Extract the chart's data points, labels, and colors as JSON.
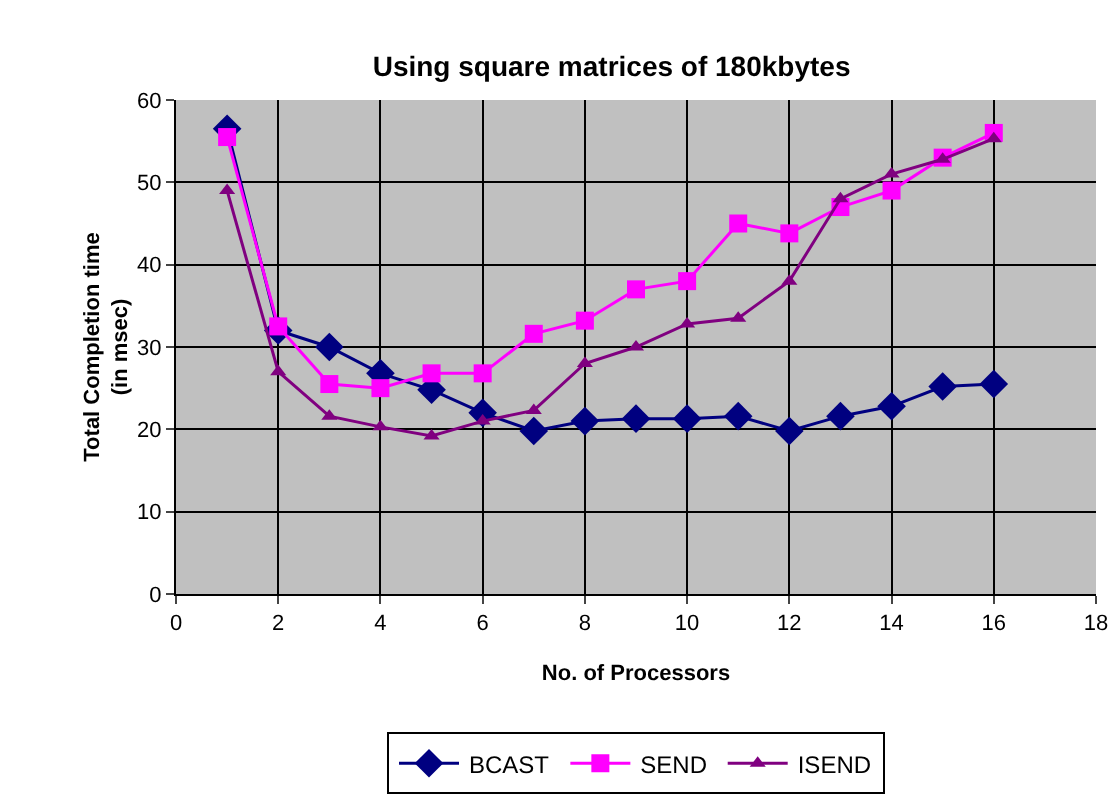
{
  "chart_data": {
    "type": "line",
    "title": "Using square matrices of 180kbytes",
    "xlabel": "No. of Processors",
    "ylabel": "Total Completion time\n(in msec)",
    "x": [
      1,
      2,
      3,
      4,
      5,
      6,
      7,
      8,
      9,
      10,
      11,
      12,
      13,
      14,
      15,
      16
    ],
    "series": [
      {
        "name": "BCAST",
        "color": "#000080",
        "marker": "diamond",
        "values": [
          56.5,
          32,
          30,
          26.8,
          24.8,
          22,
          19.8,
          21,
          21.3,
          21.3,
          21.6,
          19.8,
          21.6,
          22.8,
          25.2,
          25.5
        ]
      },
      {
        "name": "SEND",
        "color": "#ff00ff",
        "marker": "square",
        "values": [
          55.5,
          32.5,
          25.5,
          25,
          26.8,
          26.8,
          31.6,
          33.2,
          37,
          38,
          45,
          43.8,
          47,
          49,
          53,
          56
        ]
      },
      {
        "name": "ISEND",
        "color": "#800080",
        "marker": "triangle",
        "values": [
          49,
          27,
          21.6,
          20.3,
          19.2,
          21,
          22.3,
          28,
          30,
          32.8,
          33.5,
          38,
          48,
          51,
          52.8,
          55.3
        ]
      }
    ],
    "xlim": [
      0,
      18
    ],
    "xticks": [
      0,
      2,
      4,
      6,
      8,
      10,
      12,
      14,
      16,
      18
    ],
    "ylim": [
      0,
      60
    ],
    "yticks": [
      0,
      10,
      20,
      30,
      40,
      50,
      60
    ],
    "grid": true,
    "legend": "bottom"
  }
}
